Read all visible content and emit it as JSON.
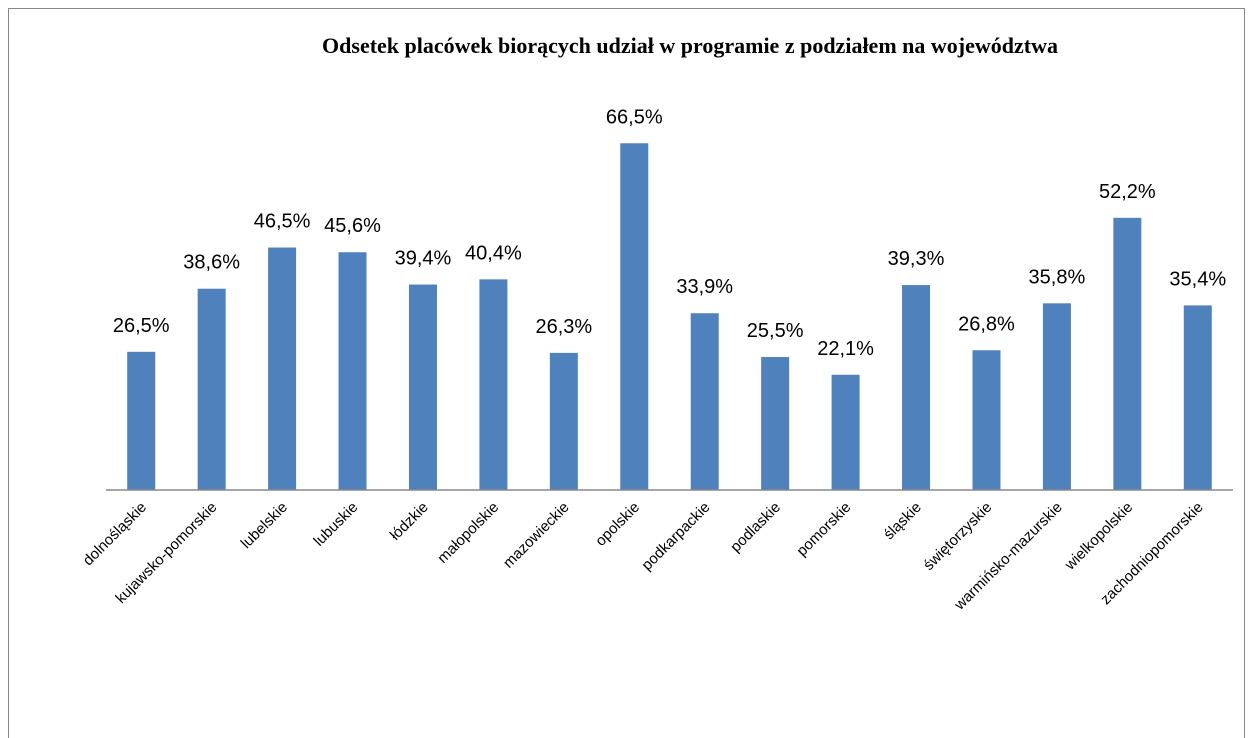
{
  "chart_data": {
    "type": "bar",
    "title": "Odsetek placówek biorących udział w programie z podziałem na województwa",
    "categories": [
      "dolnośląskie",
      "kujawsko-pomorskie",
      "lubelskie",
      "lubuskie",
      "łódzkie",
      "małopolskie",
      "mazowieckie",
      "opolskie",
      "podkarpackie",
      "podlaskie",
      "pomorskie",
      "śląskie",
      "świętorzyskie",
      "warmińsko-mazurskie",
      "wielkopolskie",
      "zachodniopomorskie"
    ],
    "values": [
      26.5,
      38.6,
      46.5,
      45.6,
      39.4,
      40.4,
      26.3,
      66.5,
      33.9,
      25.5,
      22.1,
      39.3,
      26.8,
      35.8,
      52.2,
      35.4
    ],
    "value_labels": [
      "26,5%",
      "38,6%",
      "46,5%",
      "45,6%",
      "39,4%",
      "40,4%",
      "26,3%",
      "66,5%",
      "33,9%",
      "25,5%",
      "22,1%",
      "39,3%",
      "26,8%",
      "35,8%",
      "52,2%",
      "35,4%"
    ],
    "color": "#4f81bd",
    "ylim": [
      0,
      70
    ]
  }
}
